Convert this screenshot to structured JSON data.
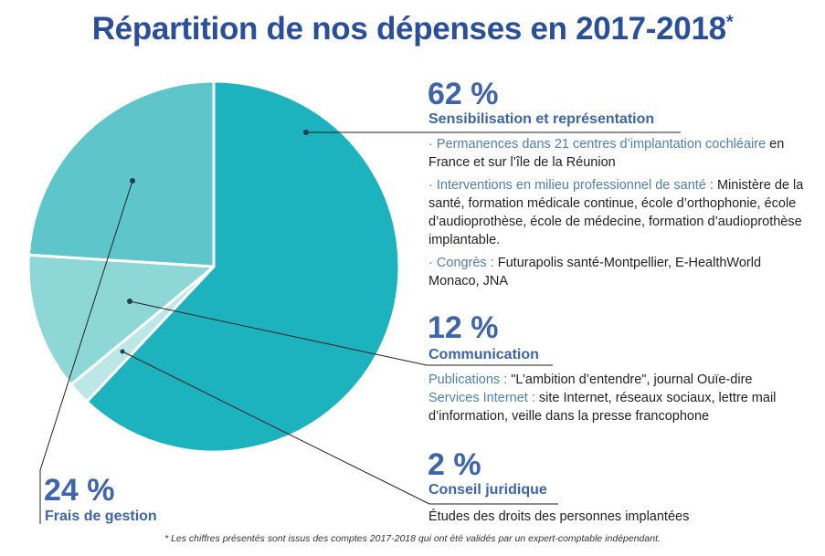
{
  "title": "Répartition de nos dépenses en 2017-2018",
  "title_asterisk": "*",
  "chart_data": {
    "type": "pie",
    "title": "Répartition de nos dépenses en 2017-2018",
    "start_angle": "top, clockwise",
    "slices": [
      {
        "label": "Sensibilisation et représentation",
        "pct_label": "62 %",
        "value": 62,
        "color": "#1cb2be"
      },
      {
        "label": "Conseil juridique",
        "pct_label": "2 %",
        "value": 2,
        "color": "#bde7e7"
      },
      {
        "label": "Communication",
        "pct_label": "12 %",
        "value": 12,
        "color": "#8dd7d6"
      },
      {
        "label": "Frais de gestion",
        "pct_label": "24 %",
        "value": 24,
        "color": "#5ec5ca"
      }
    ]
  },
  "sensibilisation": {
    "items": [
      {
        "lead": "· Permanences dans 21 centres d’implantation cochléaire",
        "rest": " en France et sur l’île de la Réunion"
      },
      {
        "lead": "· Interventions en milieu professionnel de santé :",
        "rest": " Ministère de la santé, formation médicale continue, école d’orthophonie, école d’audioprothèse, école de médecine, formation d’audioprothèse implantable."
      },
      {
        "lead": "· Congrès :",
        "rest": " Futurapolis santé-Montpellier, E-HealthWorld Monaco, JNA"
      }
    ]
  },
  "communication": {
    "items": [
      {
        "lead": "Publications :",
        "rest": " \"L’ambition d’entendre\", journal Ouïe-dire"
      },
      {
        "lead": "Services Internet :",
        "rest": " site Internet, réseaux sociaux, lettre mail d’information, veille dans la presse francophone"
      }
    ]
  },
  "conseil": {
    "text": "Études des droits des personnes implantées"
  },
  "footnote": "* Les chiffres présentés sont issus des comptes 2017-2018 qui ont été validés par un expert-comptable indépendant."
}
